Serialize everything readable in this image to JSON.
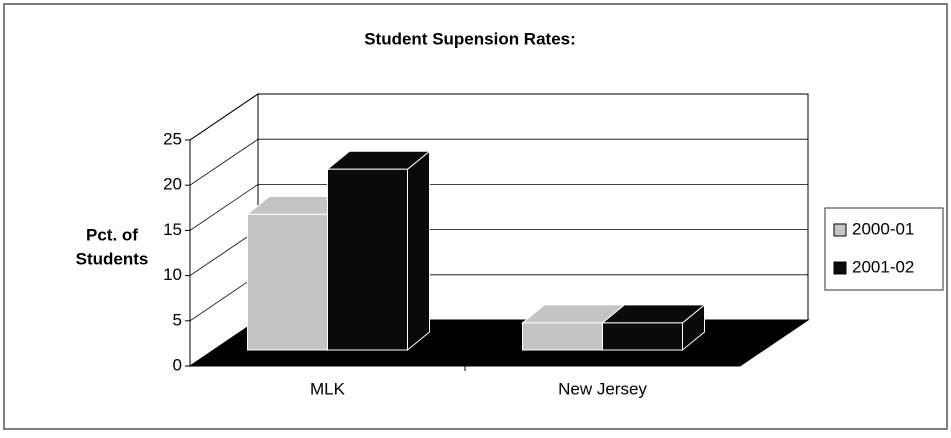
{
  "chart_data": {
    "type": "bar3d",
    "title": "Student Supension Rates:",
    "ylabel": [
      "Pct. of",
      "Students"
    ],
    "categories": [
      "MLK",
      "New Jersey"
    ],
    "series": [
      {
        "name": "2000-01",
        "color": "#c4c4c4",
        "values": [
          15,
          3
        ]
      },
      {
        "name": "2001-02",
        "color": "#0a0a0a",
        "values": [
          20,
          3
        ]
      }
    ],
    "ylim": [
      0,
      25
    ],
    "yticks": [
      0,
      5,
      10,
      15,
      20,
      25
    ],
    "grid": true,
    "legend": "right"
  }
}
